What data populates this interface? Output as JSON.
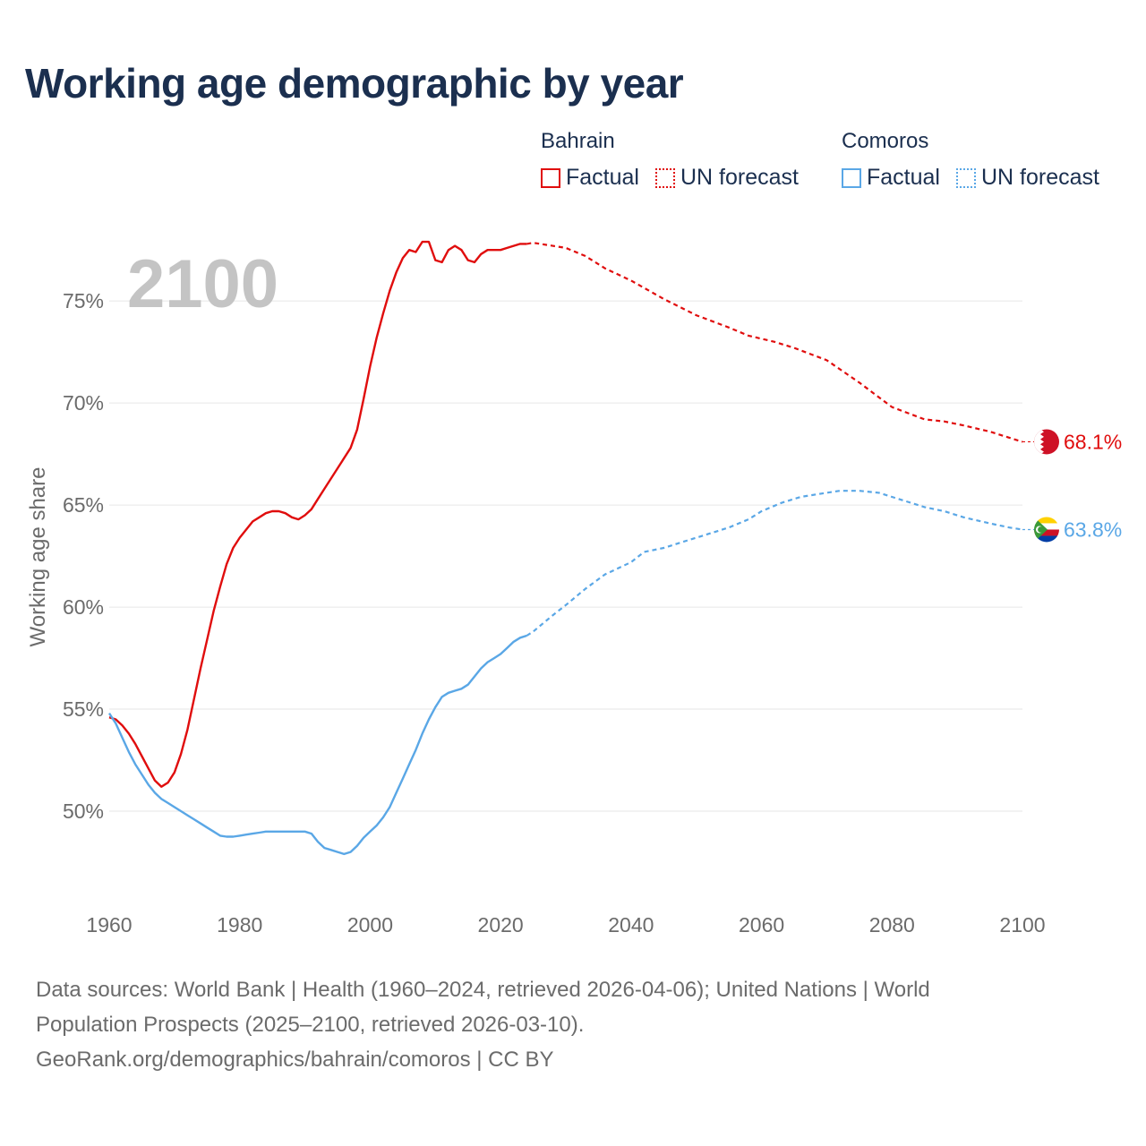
{
  "title": "Working age demographic by year",
  "legend": {
    "groups": [
      {
        "country": "Bahrain",
        "color": "#e00d0d",
        "factual_label": "Factual",
        "forecast_label": "UN forecast"
      },
      {
        "country": "Comoros",
        "color": "#5aa7e6",
        "factual_label": "Factual",
        "forecast_label": "UN forecast"
      }
    ]
  },
  "footer": {
    "line1": "Data sources: World Bank | Health (1960–2024, retrieved 2026-04-06); United Nations | World",
    "line2": "Population Prospects (2025–2100, retrieved 2026-03-10).",
    "line3": "GeoRank.org/demographics/bahrain/comoros | CC BY"
  },
  "chart_data": {
    "type": "line",
    "title": "Working age demographic by year",
    "ylabel": "Working age share",
    "xlabel": "",
    "xlim": [
      1960,
      2100
    ],
    "ylim": [
      45,
      79
    ],
    "x_ticks": [
      1960,
      1980,
      2000,
      2020,
      2040,
      2060,
      2080,
      2100
    ],
    "y_ticks": [
      50,
      55,
      60,
      65,
      70,
      75
    ],
    "y_tick_suffix": "%",
    "year_label": "2100",
    "factual_end_year": 2024,
    "series": [
      {
        "name": "Bahrain",
        "color": "#e00d0d",
        "end_label": "68.1%",
        "points": [
          [
            1960,
            54.6
          ],
          [
            1961,
            54.5
          ],
          [
            1962,
            54.2
          ],
          [
            1963,
            53.8
          ],
          [
            1964,
            53.3
          ],
          [
            1965,
            52.7
          ],
          [
            1966,
            52.1
          ],
          [
            1967,
            51.5
          ],
          [
            1968,
            51.2
          ],
          [
            1969,
            51.4
          ],
          [
            1970,
            51.9
          ],
          [
            1971,
            52.8
          ],
          [
            1972,
            54.0
          ],
          [
            1973,
            55.5
          ],
          [
            1974,
            57.0
          ],
          [
            1975,
            58.4
          ],
          [
            1976,
            59.8
          ],
          [
            1977,
            61.0
          ],
          [
            1978,
            62.1
          ],
          [
            1979,
            62.9
          ],
          [
            1980,
            63.4
          ],
          [
            1981,
            63.8
          ],
          [
            1982,
            64.2
          ],
          [
            1983,
            64.4
          ],
          [
            1984,
            64.6
          ],
          [
            1985,
            64.7
          ],
          [
            1986,
            64.7
          ],
          [
            1987,
            64.6
          ],
          [
            1988,
            64.4
          ],
          [
            1989,
            64.3
          ],
          [
            1990,
            64.5
          ],
          [
            1991,
            64.8
          ],
          [
            1992,
            65.3
          ],
          [
            1993,
            65.8
          ],
          [
            1994,
            66.3
          ],
          [
            1995,
            66.8
          ],
          [
            1996,
            67.3
          ],
          [
            1997,
            67.8
          ],
          [
            1998,
            68.7
          ],
          [
            1999,
            70.2
          ],
          [
            2000,
            71.8
          ],
          [
            2001,
            73.2
          ],
          [
            2002,
            74.4
          ],
          [
            2003,
            75.5
          ],
          [
            2004,
            76.4
          ],
          [
            2005,
            77.1
          ],
          [
            2006,
            77.5
          ],
          [
            2007,
            77.4
          ],
          [
            2008,
            77.9
          ],
          [
            2009,
            77.9
          ],
          [
            2010,
            77.0
          ],
          [
            2011,
            76.9
          ],
          [
            2012,
            77.5
          ],
          [
            2013,
            77.7
          ],
          [
            2014,
            77.5
          ],
          [
            2015,
            77.0
          ],
          [
            2016,
            76.9
          ],
          [
            2017,
            77.3
          ],
          [
            2018,
            77.5
          ],
          [
            2019,
            77.5
          ],
          [
            2020,
            77.5
          ],
          [
            2021,
            77.6
          ],
          [
            2022,
            77.7
          ],
          [
            2023,
            77.8
          ],
          [
            2024,
            77.8
          ],
          [
            2025,
            77.85
          ],
          [
            2028,
            77.7
          ],
          [
            2030,
            77.6
          ],
          [
            2033,
            77.2
          ],
          [
            2036,
            76.6
          ],
          [
            2040,
            76.0
          ],
          [
            2045,
            75.1
          ],
          [
            2050,
            74.3
          ],
          [
            2055,
            73.7
          ],
          [
            2058,
            73.3
          ],
          [
            2062,
            73.0
          ],
          [
            2065,
            72.7
          ],
          [
            2070,
            72.1
          ],
          [
            2075,
            71.0
          ],
          [
            2080,
            69.8
          ],
          [
            2085,
            69.2
          ],
          [
            2088,
            69.1
          ],
          [
            2091,
            68.9
          ],
          [
            2095,
            68.6
          ],
          [
            2098,
            68.3
          ],
          [
            2100,
            68.1
          ]
        ]
      },
      {
        "name": "Comoros",
        "color": "#5aa7e6",
        "end_label": "63.8%",
        "points": [
          [
            1960,
            54.8
          ],
          [
            1961,
            54.3
          ],
          [
            1962,
            53.6
          ],
          [
            1963,
            52.9
          ],
          [
            1964,
            52.3
          ],
          [
            1965,
            51.8
          ],
          [
            1966,
            51.3
          ],
          [
            1967,
            50.9
          ],
          [
            1968,
            50.6
          ],
          [
            1969,
            50.4
          ],
          [
            1970,
            50.2
          ],
          [
            1971,
            50.0
          ],
          [
            1972,
            49.8
          ],
          [
            1973,
            49.6
          ],
          [
            1974,
            49.4
          ],
          [
            1975,
            49.2
          ],
          [
            1976,
            49.0
          ],
          [
            1977,
            48.8
          ],
          [
            1978,
            48.75
          ],
          [
            1979,
            48.75
          ],
          [
            1980,
            48.8
          ],
          [
            1981,
            48.85
          ],
          [
            1982,
            48.9
          ],
          [
            1983,
            48.95
          ],
          [
            1984,
            49.0
          ],
          [
            1985,
            49.0
          ],
          [
            1986,
            49.0
          ],
          [
            1987,
            49.0
          ],
          [
            1988,
            49.0
          ],
          [
            1989,
            49.0
          ],
          [
            1990,
            49.0
          ],
          [
            1991,
            48.9
          ],
          [
            1992,
            48.5
          ],
          [
            1993,
            48.2
          ],
          [
            1994,
            48.1
          ],
          [
            1995,
            48.0
          ],
          [
            1996,
            47.9
          ],
          [
            1997,
            48.0
          ],
          [
            1998,
            48.3
          ],
          [
            1999,
            48.7
          ],
          [
            2000,
            49.0
          ],
          [
            2001,
            49.3
          ],
          [
            2002,
            49.7
          ],
          [
            2003,
            50.2
          ],
          [
            2004,
            50.9
          ],
          [
            2005,
            51.6
          ],
          [
            2006,
            52.3
          ],
          [
            2007,
            53.0
          ],
          [
            2008,
            53.8
          ],
          [
            2009,
            54.5
          ],
          [
            2010,
            55.1
          ],
          [
            2011,
            55.6
          ],
          [
            2012,
            55.8
          ],
          [
            2013,
            55.9
          ],
          [
            2014,
            56.0
          ],
          [
            2015,
            56.2
          ],
          [
            2016,
            56.6
          ],
          [
            2017,
            57.0
          ],
          [
            2018,
            57.3
          ],
          [
            2019,
            57.5
          ],
          [
            2020,
            57.7
          ],
          [
            2021,
            58.0
          ],
          [
            2022,
            58.3
          ],
          [
            2023,
            58.5
          ],
          [
            2024,
            58.6
          ],
          [
            2025,
            58.8
          ],
          [
            2028,
            59.6
          ],
          [
            2030,
            60.1
          ],
          [
            2033,
            60.9
          ],
          [
            2036,
            61.6
          ],
          [
            2040,
            62.2
          ],
          [
            2042,
            62.7
          ],
          [
            2045,
            62.9
          ],
          [
            2048,
            63.2
          ],
          [
            2050,
            63.4
          ],
          [
            2055,
            63.9
          ],
          [
            2058,
            64.3
          ],
          [
            2060,
            64.7
          ],
          [
            2063,
            65.1
          ],
          [
            2066,
            65.4
          ],
          [
            2070,
            65.6
          ],
          [
            2072,
            65.7
          ],
          [
            2075,
            65.7
          ],
          [
            2078,
            65.6
          ],
          [
            2080,
            65.4
          ],
          [
            2085,
            64.9
          ],
          [
            2088,
            64.7
          ],
          [
            2091,
            64.4
          ],
          [
            2095,
            64.1
          ],
          [
            2098,
            63.9
          ],
          [
            2100,
            63.8
          ]
        ]
      }
    ]
  }
}
